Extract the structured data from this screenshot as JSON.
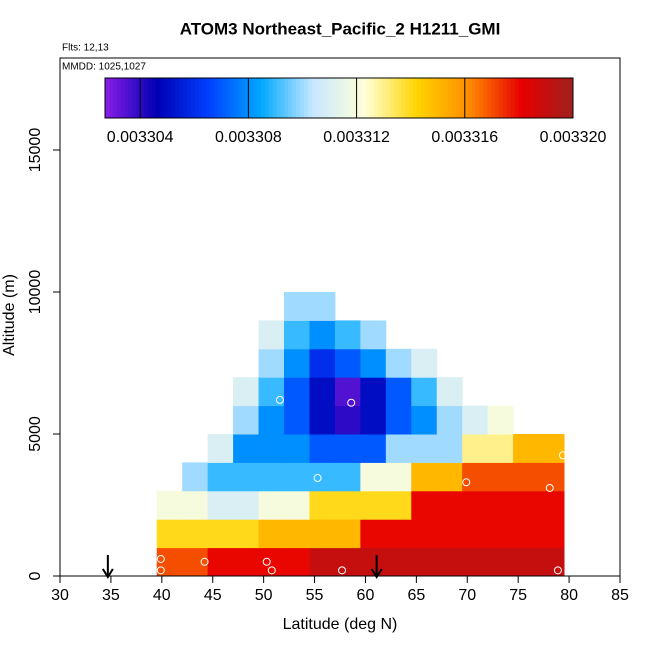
{
  "chart_data": {
    "type": "heatmap",
    "title": "ATOM3 Northeast_Pacific_2 H1211_GMI",
    "flights": "Flts: 12,13",
    "dates": "MMDD: 1025,1027",
    "x_label": "Latitude (deg N)",
    "y_label": "Altitude (m)",
    "xlim": [
      30,
      85
    ],
    "ylim": [
      0,
      18240
    ],
    "xticks": [
      30,
      35,
      40,
      45,
      50,
      55,
      60,
      65,
      70,
      75,
      80,
      85
    ],
    "yticks": [
      0,
      5000,
      10000,
      15000
    ],
    "x_edges": [
      39.5,
      42,
      44.5,
      47,
      49.5,
      52,
      54.5,
      57,
      59.5,
      62,
      64.5,
      67,
      69.5,
      72,
      74.5,
      77,
      79.5
    ],
    "y_edges": [
      0,
      1000,
      2000,
      3000,
      4000,
      5000,
      6000,
      7000,
      8000,
      9000,
      10000
    ],
    "z": [
      [
        0.003317,
        0.003317,
        0.003318,
        0.003318,
        0.003318,
        0.003318,
        0.003319,
        0.003319,
        0.003319,
        0.003319,
        0.003319,
        0.003319,
        0.003319,
        0.003319,
        0.003319,
        0.003319
      ],
      [
        0.003314,
        0.003314,
        0.003314,
        0.003314,
        0.003315,
        0.003315,
        0.003315,
        0.003315,
        0.003318,
        0.003318,
        0.003318,
        0.003318,
        0.003318,
        0.003318,
        0.003318,
        0.003318
      ],
      [
        0.003312,
        0.003312,
        0.003311,
        0.003311,
        0.003312,
        0.003312,
        0.003314,
        0.003314,
        0.003314,
        0.003314,
        0.003318,
        0.003318,
        0.003318,
        0.003318,
        0.003318,
        0.003318
      ],
      [
        null,
        0.00331,
        0.003309,
        0.003309,
        0.003309,
        0.003309,
        0.003309,
        0.003309,
        0.003312,
        0.003312,
        0.003315,
        0.003315,
        0.003317,
        0.003317,
        0.003317,
        0.003317
      ],
      [
        null,
        null,
        0.003311,
        0.003308,
        0.003308,
        0.003308,
        0.003307,
        0.003307,
        0.003307,
        0.00331,
        0.00331,
        0.00331,
        0.003313,
        0.003313,
        0.003315,
        0.003315
      ],
      [
        null,
        null,
        null,
        0.00331,
        0.003308,
        0.003307,
        0.003305,
        0.003304,
        0.003305,
        0.003307,
        0.003308,
        0.00331,
        0.003311,
        0.003312,
        null,
        null
      ],
      [
        null,
        null,
        null,
        0.003311,
        0.003309,
        0.003307,
        0.003305,
        0.0033035,
        0.003305,
        0.003307,
        0.003309,
        0.003311,
        null,
        null,
        null,
        null
      ],
      [
        null,
        null,
        null,
        null,
        0.00331,
        0.003308,
        0.003306,
        0.003307,
        0.003308,
        0.00331,
        0.003311,
        null,
        null,
        null,
        null,
        null
      ],
      [
        null,
        null,
        null,
        null,
        0.003311,
        0.003309,
        0.003308,
        0.003309,
        0.00331,
        null,
        null,
        null,
        null,
        null,
        null,
        null
      ],
      [
        null,
        null,
        null,
        null,
        null,
        0.00331,
        0.00331,
        null,
        null,
        null,
        null,
        null,
        null,
        null,
        null,
        null
      ]
    ],
    "zlim": [
      0.0033027,
      0.00332
    ],
    "zticks": [
      0.003304,
      0.003308,
      0.003312,
      0.003316,
      {
        "value": 0.00332,
        "label": "0.003320"
      }
    ],
    "colormap": [
      "#8a1ee8",
      "#0000b4",
      "#0040ff",
      "#00a8ff",
      "#c8e8ff",
      "#ffffd8",
      "#ffd400",
      "#ff8c00",
      "#e80000",
      "#a02020"
    ],
    "samples": {
      "x": [
        39.9,
        39.9,
        44.2,
        50.3,
        50.8,
        57.7,
        78.9,
        51.6,
        58.6,
        55.3,
        69.9,
        78.1,
        79.4
      ],
      "y": [
        600,
        200,
        500,
        500,
        200,
        200,
        200,
        6200,
        6100,
        3450,
        3300,
        3100,
        4250
      ]
    },
    "arrows": [
      34.7,
      61.1
    ]
  }
}
